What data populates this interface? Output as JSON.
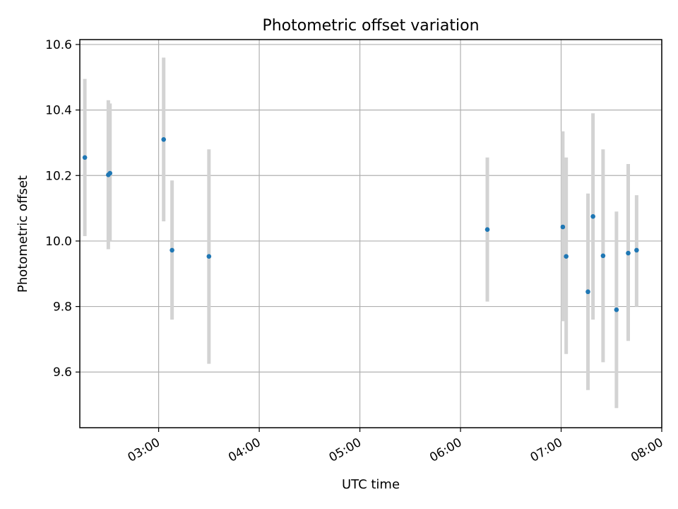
{
  "chart_data": {
    "type": "scatter",
    "title": "Photometric offset variation",
    "xlabel": "UTC time",
    "ylabel": "Photometric offset",
    "xlim": [
      "02:13",
      "08:00"
    ],
    "ylim": [
      9.43,
      10.615
    ],
    "grid": true,
    "x_ticks": [
      "03:00",
      "04:00",
      "05:00",
      "06:00",
      "07:00",
      "08:00"
    ],
    "y_ticks": [
      9.6,
      9.8,
      10.0,
      10.2,
      10.4,
      10.6
    ],
    "y_tick_labels": [
      "9.6",
      "9.8",
      "10.0",
      "10.2",
      "10.4",
      "10.6"
    ],
    "colors": {
      "point": "#1f77b4",
      "errorbar": "#d3d3d3",
      "grid": "#b0b0b0"
    },
    "points": [
      {
        "x": "02:16",
        "y": 10.255,
        "err_low": 10.015,
        "err_high": 10.495
      },
      {
        "x": "02:30",
        "y": 10.202,
        "err_low": 9.975,
        "err_high": 10.43
      },
      {
        "x": "02:31",
        "y": 10.207,
        "err_low": 10.0,
        "err_high": 10.42
      },
      {
        "x": "03:03",
        "y": 10.31,
        "err_low": 10.06,
        "err_high": 10.56
      },
      {
        "x": "03:08",
        "y": 9.972,
        "err_low": 9.76,
        "err_high": 10.185
      },
      {
        "x": "03:30",
        "y": 9.953,
        "err_low": 9.625,
        "err_high": 10.28
      },
      {
        "x": "06:16",
        "y": 10.035,
        "err_low": 9.815,
        "err_high": 10.255
      },
      {
        "x": "07:01",
        "y": 10.043,
        "err_low": 9.755,
        "err_high": 10.335
      },
      {
        "x": "07:03",
        "y": 9.953,
        "err_low": 9.655,
        "err_high": 10.255
      },
      {
        "x": "07:16",
        "y": 9.845,
        "err_low": 9.545,
        "err_high": 10.145
      },
      {
        "x": "07:19",
        "y": 10.075,
        "err_low": 9.76,
        "err_high": 10.39
      },
      {
        "x": "07:25",
        "y": 9.955,
        "err_low": 9.63,
        "err_high": 10.28
      },
      {
        "x": "07:33",
        "y": 9.79,
        "err_low": 9.49,
        "err_high": 10.09
      },
      {
        "x": "07:40",
        "y": 9.963,
        "err_low": 9.695,
        "err_high": 10.235
      },
      {
        "x": "07:45",
        "y": 9.972,
        "err_low": 9.8,
        "err_high": 10.14
      }
    ]
  }
}
